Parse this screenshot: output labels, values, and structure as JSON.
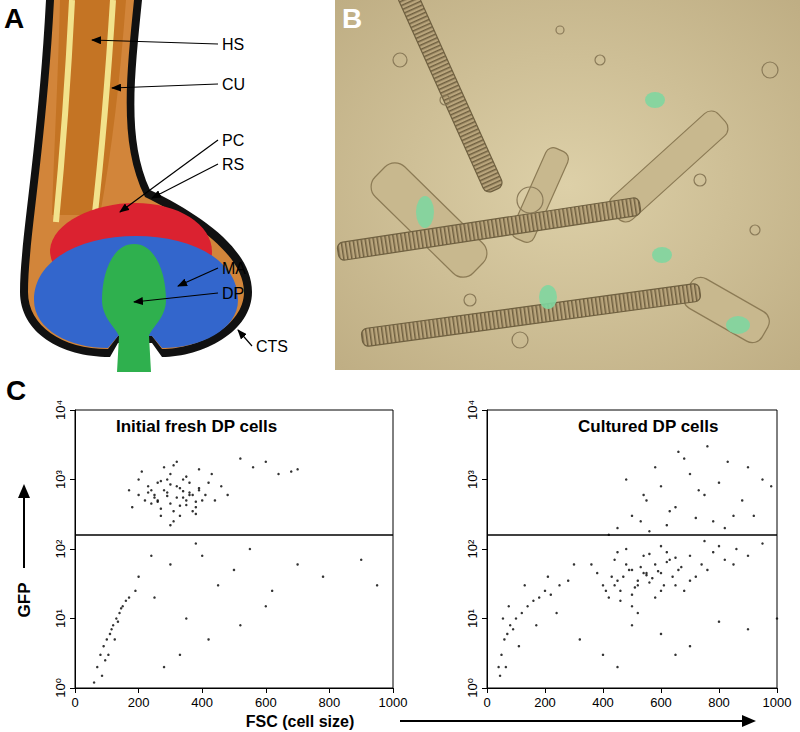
{
  "figure": {
    "A": {
      "letter": "A",
      "labels": [
        "HS",
        "CU",
        "PC",
        "RS",
        "MA",
        "DP",
        "CTS"
      ]
    },
    "B": {
      "letter": "B"
    },
    "C": {
      "letter": "C",
      "ylabel": "GFP",
      "xlabel": "FSC (cell size)"
    }
  },
  "chart_data": [
    {
      "type": "scatter",
      "title": "Initial fresh DP cells",
      "color": "#000000",
      "grid": false,
      "log": "y",
      "xlim": [
        0,
        1000
      ],
      "xticks": [
        0,
        200,
        400,
        600,
        800,
        1000
      ],
      "ylim": [
        1,
        10000
      ],
      "yticks": [
        {
          "value": 1,
          "label": "10⁰"
        },
        {
          "value": 10,
          "label": "10¹"
        },
        {
          "value": 100,
          "label": "10²"
        },
        {
          "value": 1000,
          "label": "10³"
        },
        {
          "value": 10000,
          "label": "10⁴"
        }
      ],
      "threshold": 160,
      "x": [
        220,
        250,
        280,
        300,
        320,
        340,
        360,
        380,
        260,
        290,
        310,
        330,
        350,
        370,
        240,
        270,
        300,
        330,
        360,
        390,
        200,
        230,
        260,
        290,
        320,
        350,
        380,
        410,
        440,
        180,
        210,
        240,
        270,
        300,
        330,
        360,
        390,
        420,
        250,
        280,
        310,
        340,
        370,
        400,
        230,
        260,
        290,
        320,
        350,
        380,
        170,
        460,
        430,
        300,
        270,
        340,
        390,
        480,
        200,
        310,
        560,
        600,
        640,
        700,
        520,
        680,
        70,
        80,
        90,
        100,
        110,
        120,
        130,
        140,
        150,
        160,
        85,
        95,
        105,
        115,
        125,
        135,
        145,
        60,
        170,
        190,
        200,
        250,
        300,
        350,
        400,
        450,
        500,
        550,
        620,
        700,
        780,
        900,
        950,
        330,
        420,
        280,
        520,
        380,
        240,
        600
      ],
      "values": [
        500,
        600,
        700,
        450,
        800,
        550,
        650,
        400,
        900,
        1000,
        350,
        750,
        500,
        600,
        450,
        380,
        1200,
        300,
        900,
        700,
        600,
        800,
        500,
        650,
        550,
        1100,
        480,
        600,
        500,
        400,
        1300,
        700,
        300,
        850,
        420,
        600,
        750,
        900,
        550,
        1500,
        250,
        1000,
        350,
        500,
        650,
        480,
        580,
        1800,
        430,
        320,
        700,
        800,
        1200,
        220,
        950,
        680,
        1400,
        600,
        1000,
        1600,
        1500,
        1800,
        1200,
        1400,
        2000,
        1300,
        2,
        3,
        4,
        5,
        6,
        8,
        10,
        12,
        15,
        18,
        1.5,
        2.5,
        3,
        7,
        5,
        9,
        14,
        1.2,
        20,
        25,
        40,
        20,
        60,
        10,
        80,
        30,
        50,
        100,
        25,
        60,
        40,
        70,
        30,
        3,
        5,
        2,
        8,
        120,
        80,
        15
      ]
    },
    {
      "type": "scatter",
      "title": "Cultured DP cells",
      "color": "#000000",
      "grid": false,
      "log": "y",
      "xlim": [
        0,
        1000
      ],
      "xticks": [
        0,
        200,
        400,
        600,
        800,
        1000
      ],
      "ylim": [
        1,
        10000
      ],
      "yticks": [
        {
          "value": 1,
          "label": "10⁰"
        },
        {
          "value": 10,
          "label": "10¹"
        },
        {
          "value": 100,
          "label": "10²"
        },
        {
          "value": 1000,
          "label": "10³"
        },
        {
          "value": 10000,
          "label": "10⁴"
        }
      ],
      "threshold": 160,
      "x": [
        400,
        430,
        460,
        490,
        520,
        550,
        580,
        610,
        640,
        670,
        420,
        450,
        480,
        510,
        540,
        570,
        600,
        630,
        660,
        700,
        380,
        410,
        440,
        470,
        500,
        530,
        560,
        590,
        620,
        650,
        740,
        780,
        820,
        860,
        900,
        720,
        760,
        800,
        850,
        950,
        460,
        500,
        540,
        580,
        620,
        480,
        520,
        560,
        600,
        680,
        360,
        440,
        520,
        600,
        700,
        500,
        550,
        450,
        650,
        750,
        450,
        500,
        550,
        600,
        650,
        700,
        750,
        800,
        850,
        900,
        480,
        530,
        580,
        630,
        680,
        730,
        780,
        830,
        880,
        950,
        420,
        560,
        620,
        720,
        820,
        920,
        980,
        660,
        760,
        540,
        40,
        50,
        60,
        70,
        80,
        90,
        100,
        120,
        140,
        160,
        180,
        200,
        220,
        250,
        280,
        45,
        55,
        65,
        75,
        110,
        130,
        170,
        210,
        240,
        300,
        320,
        400,
        500,
        600,
        700,
        800,
        900,
        1000,
        450,
        650
      ],
      "values": [
        30,
        40,
        25,
        50,
        35,
        45,
        60,
        30,
        40,
        55,
        20,
        35,
        60,
        28,
        45,
        38,
        25,
        70,
        50,
        80,
        45,
        25,
        30,
        40,
        22,
        55,
        33,
        48,
        65,
        30,
        60,
        90,
        70,
        100,
        80,
        40,
        50,
        110,
        60,
        120,
        18,
        15,
        80,
        20,
        90,
        100,
        12,
        85,
        110,
        25,
        60,
        70,
        30,
        45,
        35,
        50,
        42,
        90,
        75,
        130,
        200,
        300,
        500,
        800,
        400,
        1200,
        600,
        900,
        300,
        1500,
        1000,
        250,
        1500,
        350,
        2000,
        700,
        250,
        1800,
        500,
        1000,
        160,
        180,
        220,
        280,
        200,
        300,
        800,
        2500,
        3000,
        600,
        2,
        3,
        5,
        6,
        8,
        7,
        10,
        12,
        15,
        18,
        20,
        25,
        22,
        30,
        35,
        1.5,
        10,
        2,
        15,
        4,
        30,
        8,
        40,
        12,
        60,
        5,
        3,
        8,
        6,
        4,
        9,
        7,
        10,
        2,
        3
      ]
    }
  ]
}
